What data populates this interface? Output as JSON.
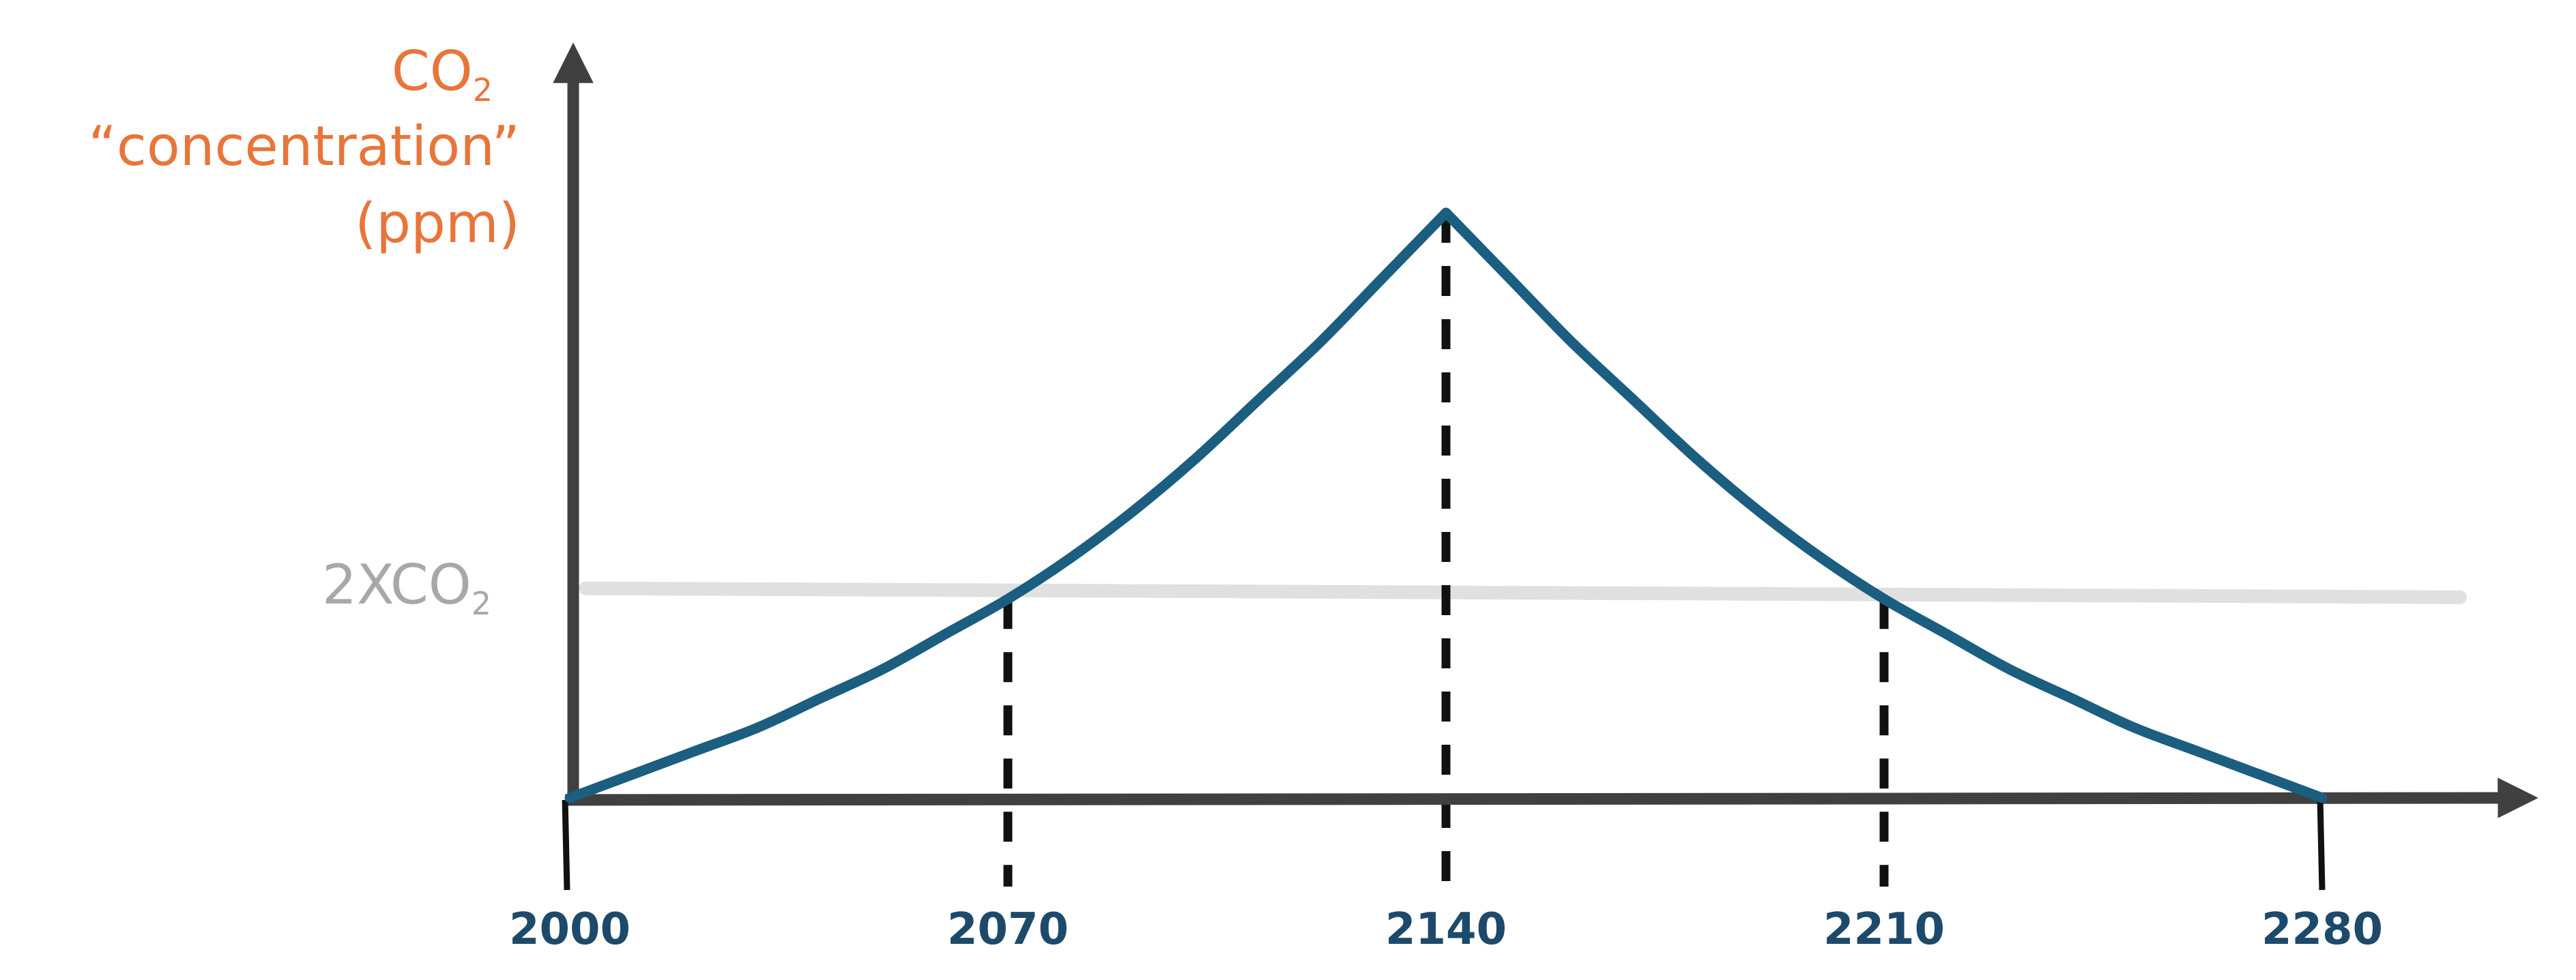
{
  "chart_data": {
    "type": "line",
    "title": "",
    "ylabel": {
      "line1_main": "CO",
      "line1_sub": "2",
      "line2": "“concentration”",
      "line3": "(ppm)"
    },
    "xlabel": "",
    "x_ticks": [
      "2000",
      "2070",
      "2140",
      "2210",
      "2280"
    ],
    "xlim": [
      2000,
      2320
    ],
    "ylim": [
      0,
      1
    ],
    "reference_line": {
      "main": "2XCO",
      "sub": "2",
      "y": 0.35
    },
    "series": [
      {
        "x": [
          2000,
          2010,
          2020,
          2030,
          2040,
          2050,
          2060,
          2070,
          2080,
          2090,
          2100,
          2110,
          2120,
          2130,
          2140,
          2150,
          2160,
          2170,
          2180,
          2190,
          2200,
          2210,
          2220,
          2230,
          2240,
          2250,
          2260,
          2270,
          2280
        ],
        "y": [
          0,
          0.04,
          0.08,
          0.12,
          0.17,
          0.22,
          0.28,
          0.34,
          0.41,
          0.49,
          0.58,
          0.68,
          0.78,
          0.89,
          1.0,
          0.89,
          0.78,
          0.68,
          0.58,
          0.49,
          0.41,
          0.34,
          0.28,
          0.22,
          0.17,
          0.12,
          0.08,
          0.04,
          0
        ]
      }
    ],
    "dashed_markers_at_x": [
      2070,
      2140,
      2210
    ],
    "colors": {
      "series": "#1b5e80",
      "axis": "#404040",
      "reference": "#e0e0e0",
      "ylabel": "#e8753a",
      "reference_label": "#a8a8a8",
      "tick_label": "#1d4a6b",
      "marker": "#111111"
    }
  }
}
